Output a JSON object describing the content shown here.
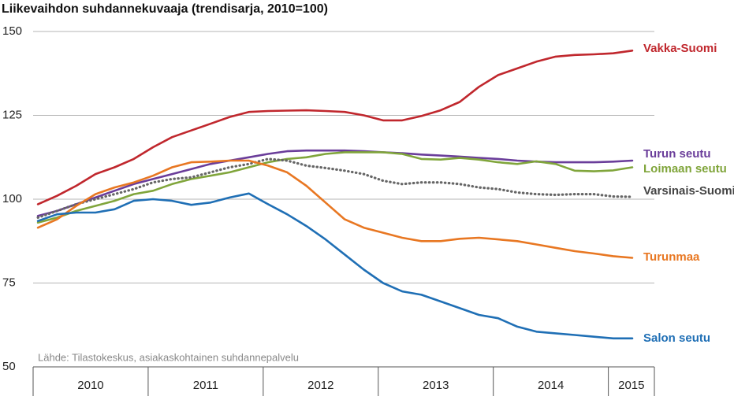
{
  "chart_data": {
    "type": "line",
    "title": "Liikevaihdon suhdannekuvaaja (trendisarja, 2010=100)",
    "note": "Lähde: Tilastokeskus, asiakaskohtainen suhdannepalvelu",
    "x": [
      2010.042,
      2010.208,
      2010.375,
      2010.542,
      2010.708,
      2010.875,
      2011.042,
      2011.208,
      2011.375,
      2011.542,
      2011.708,
      2011.875,
      2012.042,
      2012.208,
      2012.375,
      2012.542,
      2012.708,
      2012.875,
      2013.042,
      2013.208,
      2013.375,
      2013.542,
      2013.708,
      2013.875,
      2014.042,
      2014.208,
      2014.375,
      2014.542,
      2014.708,
      2014.875,
      2015.042,
      2015.208
    ],
    "xlim": [
      2010,
      2015.4
    ],
    "xticks": [
      2010,
      2011,
      2012,
      2013,
      2014,
      2015
    ],
    "ylim": [
      50,
      150
    ],
    "yticks": [
      50,
      75,
      100,
      125,
      150
    ],
    "grid": true,
    "series": [
      {
        "name": "Vakka-Suomi",
        "color": "#c0272d",
        "values": [
          98.5,
          101,
          104,
          107.5,
          109.5,
          112,
          115.5,
          118.5,
          120.5,
          122.5,
          124.5,
          126,
          126.3,
          126.4,
          126.5,
          126.3,
          126,
          125,
          123.5,
          123.5,
          124.8,
          126.5,
          129,
          133.5,
          137,
          139,
          141,
          142.5,
          143,
          143.2,
          143.5,
          144.3
        ]
      },
      {
        "name": "Turun seutu",
        "color": "#6a3d9a",
        "values": [
          95,
          96.5,
          98.5,
          100.5,
          102.5,
          104.5,
          106,
          107.5,
          109,
          110.5,
          111.5,
          112.5,
          113.5,
          114.3,
          114.5,
          114.5,
          114.5,
          114.3,
          114,
          113.7,
          113.3,
          113,
          112.7,
          112.3,
          112,
          111.5,
          111.2,
          111,
          111,
          111,
          111.2,
          111.5
        ]
      },
      {
        "name": "Loimaan seutu",
        "color": "#80a53b",
        "values": [
          93,
          94.5,
          96.5,
          98,
          99.5,
          101.5,
          102.5,
          104.5,
          106,
          107,
          108,
          109.5,
          111,
          112,
          112.5,
          113.5,
          114,
          114,
          114,
          113.5,
          112,
          111.8,
          112.3,
          111.8,
          111,
          110.5,
          111.3,
          110.5,
          108.5,
          108.3,
          108.6,
          109.5
        ]
      },
      {
        "name": "Varsinais-Suomi",
        "color": "#666666",
        "dotted": true,
        "values": [
          94.5,
          96.5,
          98.5,
          100,
          101.5,
          103,
          105,
          106,
          106.5,
          108,
          109.5,
          110.5,
          112,
          111.5,
          110,
          109.3,
          108.5,
          107.5,
          105.5,
          104.5,
          105,
          105,
          104.5,
          103.5,
          103,
          102,
          101.5,
          101.3,
          101.5,
          101.5,
          100.8,
          100.7
        ]
      },
      {
        "name": "Turunmaa",
        "color": "#e87722",
        "values": [
          91.5,
          94,
          98,
          101.5,
          103.5,
          105,
          107,
          109.5,
          111,
          111.2,
          111.5,
          111.5,
          110,
          108,
          104,
          99,
          94,
          91.5,
          90,
          88.5,
          87.5,
          87.5,
          88.2,
          88.5,
          88,
          87.5,
          86.5,
          85.5,
          84.5,
          83.8,
          83,
          82.5
        ]
      },
      {
        "name": "Salon seutu",
        "color": "#1f6fb5",
        "values": [
          93.5,
          95.5,
          96,
          96,
          97,
          99.5,
          100,
          99.5,
          98.3,
          99,
          100.5,
          101.7,
          98.5,
          95.5,
          92,
          88,
          83.5,
          79,
          75,
          72.5,
          71.5,
          69.5,
          67.5,
          65.5,
          64.5,
          62,
          60.5,
          60,
          59.5,
          59,
          58.5,
          58.5
        ]
      }
    ]
  }
}
